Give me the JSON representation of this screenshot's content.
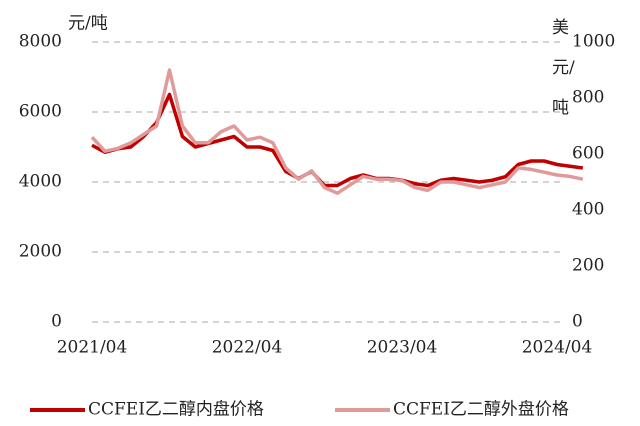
{
  "chart_data": {
    "type": "line",
    "categories": [
      "2021/04",
      null,
      null,
      null,
      null,
      null,
      null,
      null,
      null,
      null,
      null,
      null,
      "2022/04",
      null,
      null,
      null,
      null,
      null,
      null,
      null,
      null,
      null,
      null,
      null,
      "2023/04",
      null,
      null,
      null,
      null,
      null,
      null,
      null,
      null,
      null,
      null,
      null,
      "2024/04",
      null,
      null
    ],
    "y_label": "元/吨",
    "y2_label": "美元/吨",
    "ylim": [
      0,
      8000
    ],
    "yticks": [
      0,
      2000,
      4000,
      6000,
      8000
    ],
    "y2lim": [
      0,
      1000
    ],
    "y2ticks": [
      0,
      200,
      400,
      600,
      800,
      1000
    ],
    "grid": true,
    "legend": "bottom",
    "series": [
      {
        "name": "CCFEI乙二醇内盘价格",
        "color": "#c00000",
        "values": [
          5050,
          4850,
          4950,
          5000,
          5300,
          5700,
          6500,
          5300,
          5000,
          5100,
          5200,
          5300,
          5000,
          5000,
          4900,
          4300,
          4100,
          4300,
          3900,
          3900,
          4100,
          4200,
          4100,
          4100,
          4050,
          3950,
          3900,
          4050,
          4100,
          4050,
          4000,
          4050,
          4150,
          4500,
          4600,
          4600,
          4500,
          4450,
          4400
        ]
      },
      {
        "name": "CCFEI乙二醇外盘价格",
        "color": "#e09a9a",
        "axis": "y2",
        "values": [
          660,
          610,
          620,
          640,
          670,
          700,
          900,
          700,
          640,
          640,
          680,
          700,
          650,
          660,
          640,
          550,
          510,
          540,
          480,
          460,
          490,
          520,
          510,
          510,
          505,
          480,
          470,
          500,
          500,
          490,
          480,
          490,
          500,
          550,
          545,
          535,
          525,
          520,
          510
        ]
      }
    ]
  }
}
